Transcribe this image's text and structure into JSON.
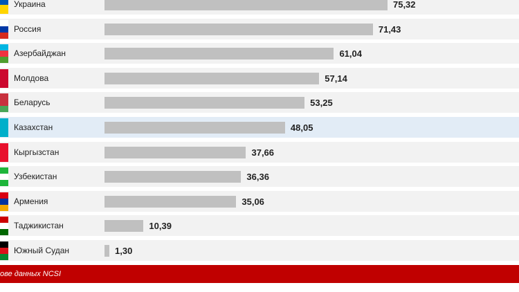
{
  "chart_data": {
    "type": "bar",
    "orientation": "horizontal",
    "categories": [
      "Украина",
      "Россия",
      "Азербайджан",
      "Молдова",
      "Беларусь",
      "Казахстан",
      "Кыргызстан",
      "Узбекистан",
      "Армения",
      "Таджикистан",
      "Южный Судан"
    ],
    "values": [
      75.32,
      71.43,
      61.04,
      57.14,
      53.25,
      48.05,
      37.66,
      36.36,
      35.06,
      10.39,
      1.3
    ],
    "value_labels": [
      "75,32",
      "71,43",
      "61,04",
      "57,14",
      "53,25",
      "48,05",
      "37,66",
      "36,36",
      "35,06",
      "10,39",
      "1,30"
    ],
    "highlighted": "Казахстан",
    "xlim": [
      0,
      100
    ],
    "grid": false,
    "colors": {
      "bar": "#c0c0c0",
      "row": "#f2f2f2",
      "highlight_row": "#e2ecf6",
      "source_bar": "#c00000"
    },
    "flags": {
      "Украина": [
        "#0057b7",
        "#ffd500"
      ],
      "Россия": [
        "#ffffff",
        "#0039a6",
        "#d52b1e"
      ],
      "Азербайджан": [
        "#00b5e2",
        "#ef3340",
        "#509e2f"
      ],
      "Молдова": [
        "#cc092f"
      ],
      "Беларусь": [
        "#c8313e",
        "#c8313e",
        "#4aa657"
      ],
      "Казахстан": [
        "#00afca"
      ],
      "Кыргызстан": [
        "#e8112d"
      ],
      "Узбекистан": [
        "#1eb53a",
        "#ffffff",
        "#1eb53a"
      ],
      "Армения": [
        "#d90012",
        "#0033a0",
        "#f2a800"
      ],
      "Таджикистан": [
        "#cc0000",
        "#ffffff",
        "#006600"
      ],
      "Южный Судан": [
        "#000000",
        "#da121a",
        "#078930"
      ]
    }
  },
  "footer": {
    "source": "ове данных NCSI"
  }
}
